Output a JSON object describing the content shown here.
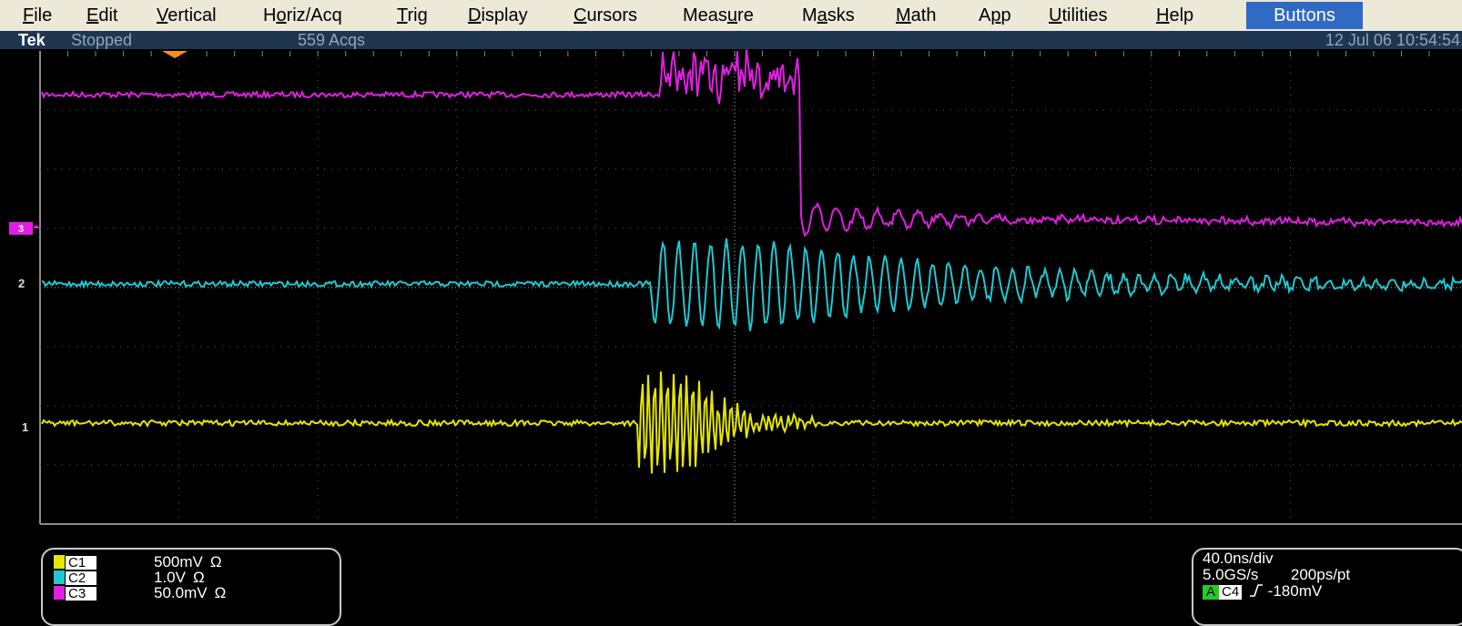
{
  "menu": {
    "items": [
      {
        "label": "File",
        "underline": 0
      },
      {
        "label": "Edit",
        "underline": 0
      },
      {
        "label": "Vertical",
        "underline": 0
      },
      {
        "label": "Horiz/Acq",
        "underline": 1
      },
      {
        "label": "Trig",
        "underline": 0
      },
      {
        "label": "Display",
        "underline": 0
      },
      {
        "label": "Cursors",
        "underline": 0
      },
      {
        "label": "Measure",
        "underline": 4
      },
      {
        "label": "Masks",
        "underline": 1
      },
      {
        "label": "Math",
        "underline": 0
      },
      {
        "label": "App",
        "underline": 1
      },
      {
        "label": "Utilities",
        "underline": 0
      },
      {
        "label": "Help",
        "underline": 0
      }
    ],
    "buttons_label": "Buttons"
  },
  "status": {
    "brand": "Tek",
    "state": "Stopped",
    "acqs": "559 Acqs",
    "datetime": "12 Jul 06 10:54:54"
  },
  "scope": {
    "grid": {
      "h_div": 10,
      "v_div": 8
    },
    "colors": {
      "background": "#000000",
      "grid": "#5a5a5a",
      "ch1": "#e6e600",
      "ch2": "#1ec8d2",
      "ch3": "#e21ee2",
      "trigger_marker": "#ff8c1a"
    },
    "markers": {
      "ch1": "1",
      "ch2": "2",
      "ch3": "3"
    }
  },
  "channels": [
    {
      "tag": "C1",
      "color": "#e6e600",
      "scale": "500mV",
      "coupling": "Ω"
    },
    {
      "tag": "C2",
      "color": "#1ec8d2",
      "scale": "1.0V",
      "coupling": "Ω"
    },
    {
      "tag": "C3",
      "color": "#e21ee2",
      "scale": "50.0mV",
      "coupling": "Ω"
    }
  ],
  "timebase": {
    "time_div": "40.0ns/div",
    "sample_rate": "5.0GS/s",
    "resolution": "200ps/pt",
    "trigger_source_tag": "A",
    "trigger_channel": "C4",
    "trigger_slope_icon": "rising-edge-icon",
    "trigger_level": "-180mV"
  }
}
